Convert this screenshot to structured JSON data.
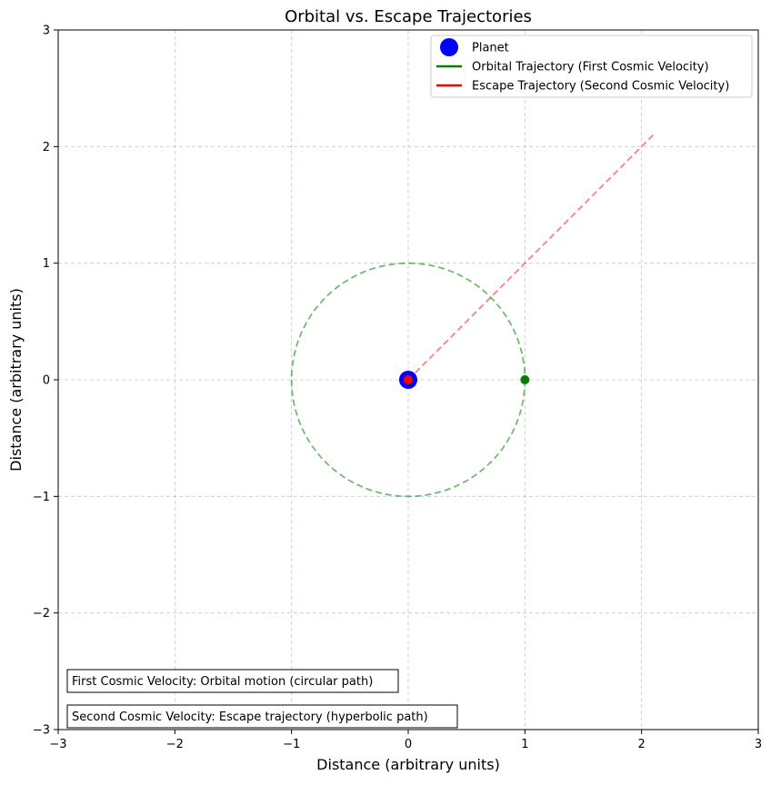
{
  "chart_data": {
    "type": "line",
    "title": "Orbital vs. Escape Trajectories",
    "xlabel": "Distance (arbitrary units)",
    "ylabel": "Distance (arbitrary units)",
    "xlim": [
      -3,
      3
    ],
    "ylim": [
      -3,
      3
    ],
    "xticks": [
      -3,
      -2,
      -1,
      0,
      1,
      2,
      3
    ],
    "yticks": [
      -3,
      -2,
      -1,
      0,
      1,
      2,
      3
    ],
    "xtick_labels": [
      "−3",
      "−2",
      "−1",
      "0",
      "1",
      "2",
      "3"
    ],
    "ytick_labels": [
      "−3",
      "−2",
      "−1",
      "0",
      "1",
      "2",
      "3"
    ],
    "grid": true,
    "legend_position": "top-right",
    "legend": [
      {
        "label": "Planet",
        "marker": "circle",
        "color": "#0000ff"
      },
      {
        "label": "Orbital Trajectory (First Cosmic Velocity)",
        "marker": "line",
        "color": "#008000"
      },
      {
        "label": "Escape Trajectory (Second Cosmic Velocity)",
        "marker": "line",
        "color": "#ff0000"
      }
    ],
    "planet": {
      "x": 0,
      "y": 0,
      "color": "#0000ff"
    },
    "orbit": {
      "center": [
        0,
        0
      ],
      "radius": 1,
      "color": "#008000",
      "style": "dashed"
    },
    "orbit_start_point": {
      "x": 1,
      "y": 0,
      "color": "#008000"
    },
    "escape": {
      "x": [
        0,
        2.12
      ],
      "y": [
        0,
        2.12
      ],
      "color": "#ff0000",
      "style": "dashed"
    },
    "escape_start_point": {
      "x": 0,
      "y": 0,
      "color": "#ff0000"
    },
    "annotations": [
      "First Cosmic Velocity: Orbital motion (circular path)",
      "Second Cosmic Velocity: Escape trajectory (hyperbolic path)"
    ]
  }
}
